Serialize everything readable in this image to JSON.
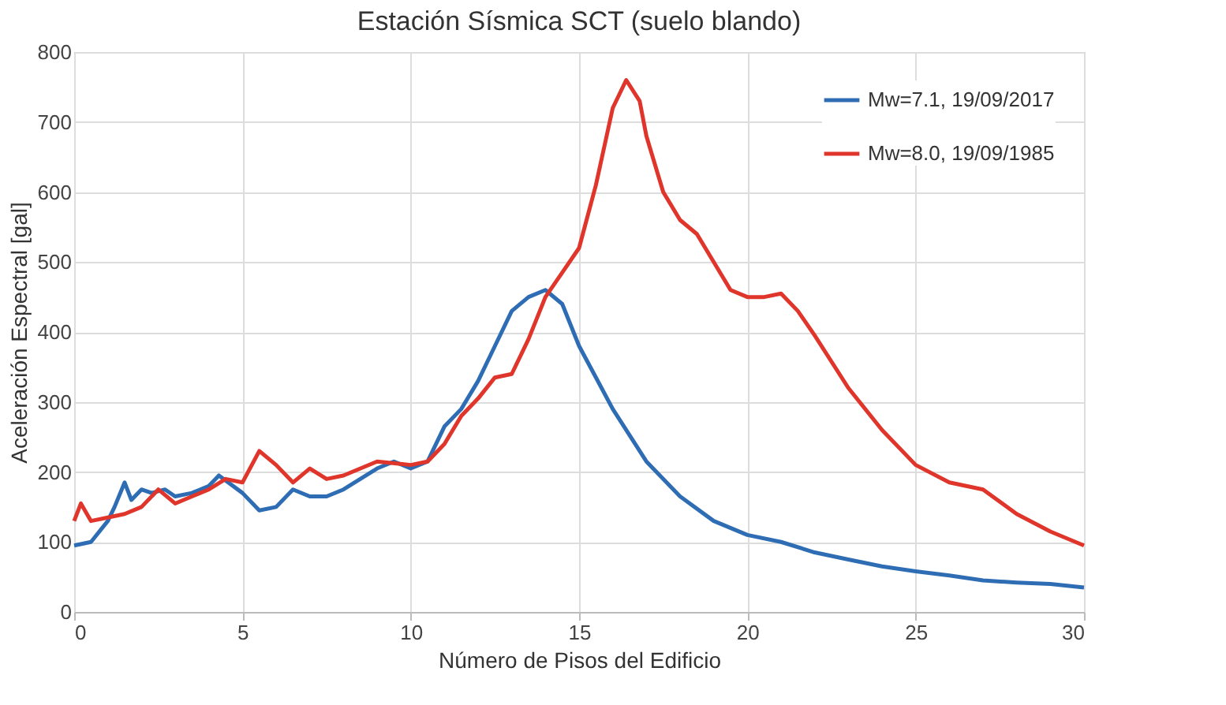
{
  "chart_data": {
    "type": "line",
    "title": "Estación Sísmica SCT (suelo blando)",
    "xlabel": "Número de Pisos del Edificio",
    "ylabel": "Aceleración Espectral [gal]",
    "xlim": [
      0,
      30
    ],
    "xticks": [
      0,
      5,
      10,
      15,
      20,
      25,
      30
    ],
    "ylim": [
      0,
      800
    ],
    "yticks": [
      0,
      100,
      200,
      300,
      400,
      500,
      600,
      700,
      800
    ],
    "grid": true,
    "legend": "top right",
    "series": [
      {
        "name": "Mw=7.1, 19/09/2017",
        "color": "#2e6db4",
        "line_style": "solid",
        "x": [
          0,
          0.5,
          1,
          1.2,
          1.5,
          1.7,
          2,
          2.3,
          2.7,
          3,
          3.5,
          4,
          4.3,
          5,
          5.5,
          6,
          6.5,
          7,
          7.5,
          8,
          9,
          9.5,
          10,
          10.5,
          11,
          11.5,
          12,
          12.5,
          13,
          13.5,
          14,
          14.5,
          15,
          16,
          17,
          18,
          19,
          20,
          21,
          22,
          23,
          24,
          25,
          26,
          27,
          28,
          29,
          30
        ],
        "values": [
          95,
          100,
          130,
          150,
          185,
          160,
          175,
          170,
          175,
          165,
          170,
          180,
          195,
          170,
          145,
          150,
          175,
          165,
          165,
          175,
          205,
          215,
          205,
          215,
          265,
          290,
          330,
          380,
          430,
          450,
          460,
          440,
          380,
          290,
          215,
          165,
          130,
          110,
          100,
          85,
          75,
          65,
          58,
          52,
          45,
          42,
          40,
          35
        ]
      },
      {
        "name": "Mw=8.0, 19/09/1985",
        "color": "#e0352b",
        "line_style": "solid",
        "x": [
          0,
          0.2,
          0.5,
          1,
          1.5,
          2,
          2.5,
          3,
          3.5,
          4,
          4.5,
          5,
          5.5,
          6,
          6.5,
          7,
          7.5,
          8,
          9,
          10,
          10.5,
          11,
          11.5,
          12,
          12.5,
          13,
          13.5,
          14,
          14.5,
          15,
          15.5,
          16,
          16.4,
          16.8,
          17,
          17.5,
          18,
          18.5,
          19,
          19.5,
          20,
          20.5,
          21,
          21.5,
          22,
          23,
          24,
          25,
          26,
          27,
          28,
          29,
          30
        ],
        "values": [
          130,
          155,
          130,
          135,
          140,
          150,
          175,
          155,
          165,
          175,
          190,
          185,
          230,
          210,
          185,
          205,
          190,
          195,
          215,
          210,
          215,
          240,
          280,
          305,
          335,
          340,
          390,
          450,
          485,
          520,
          610,
          720,
          760,
          730,
          680,
          600,
          560,
          540,
          500,
          460,
          450,
          450,
          455,
          430,
          395,
          320,
          260,
          210,
          185,
          175,
          140,
          115,
          95
        ]
      }
    ]
  }
}
